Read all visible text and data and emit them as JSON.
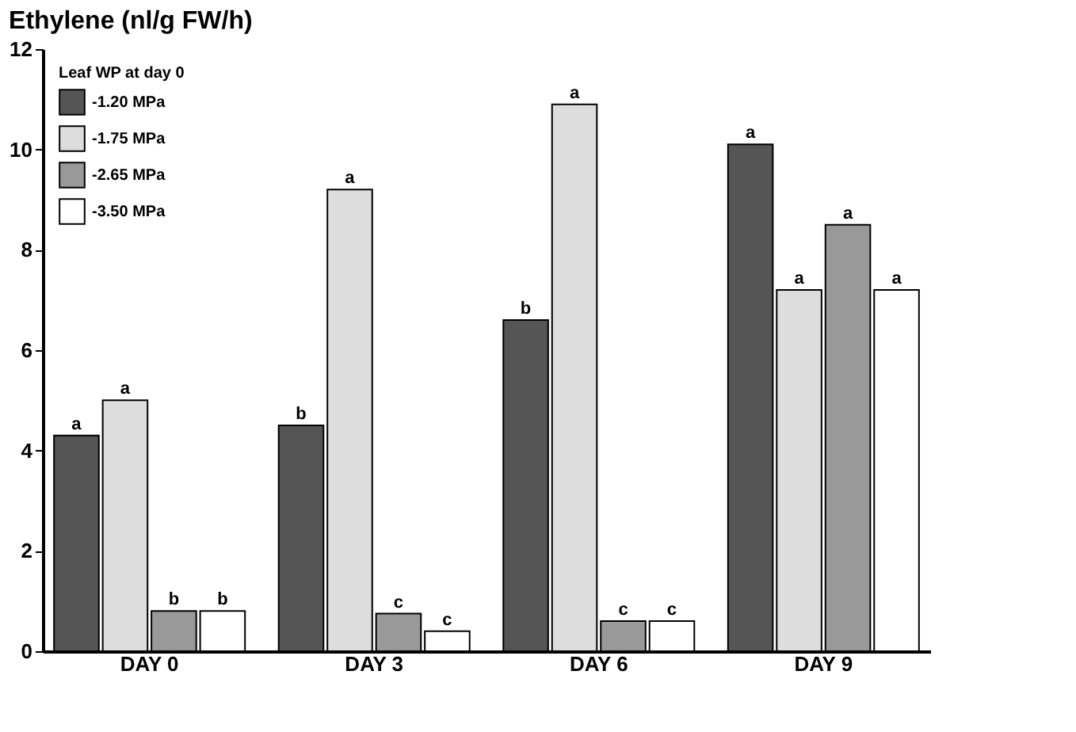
{
  "chart_data": {
    "type": "bar",
    "title": "Ethylene (nl/g FW/h)",
    "legend_title": "Leaf WP at day 0",
    "categories": [
      "DAY 0",
      "DAY 3",
      "DAY 6",
      "DAY 9"
    ],
    "series": [
      {
        "name": "-1.20 MPa",
        "color": "#555555",
        "values": [
          4.3,
          4.5,
          6.6,
          10.1
        ],
        "value_labels": [
          "a",
          "b",
          "b",
          "a"
        ]
      },
      {
        "name": "-1.75 MPa",
        "color": "#dddddd",
        "values": [
          5.0,
          9.2,
          10.9,
          7.2
        ],
        "value_labels": [
          "a",
          "a",
          "a",
          "a"
        ]
      },
      {
        "name": "-2.65 MPa",
        "color": "#999999",
        "values": [
          0.8,
          0.75,
          0.6,
          8.5
        ],
        "value_labels": [
          "b",
          "c",
          "c",
          "a"
        ]
      },
      {
        "name": "-3.50 MPa",
        "color": "#ffffff",
        "values": [
          0.8,
          0.4,
          0.6,
          7.2
        ],
        "value_labels": [
          "b",
          "c",
          "c",
          "a"
        ]
      }
    ],
    "ylim": [
      0,
      12
    ],
    "yticks": [
      0,
      2,
      4,
      6,
      8,
      10,
      12
    ],
    "grid": false,
    "legend": "top left"
  }
}
